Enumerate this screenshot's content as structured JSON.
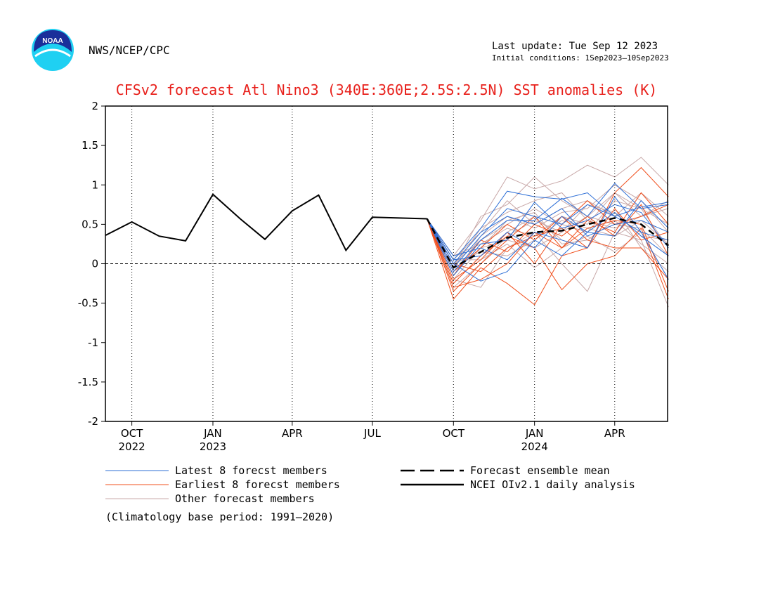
{
  "header": {
    "agency": "NWS/NCEP/CPC",
    "last_update": "Last update: Tue Sep 12 2023",
    "initial_conditions": "Initial conditions: 1Sep2023–10Sep2023",
    "logo_text": "NOAA"
  },
  "colors": {
    "title": "#e8211c",
    "latest": "#2e6fd6",
    "earliest": "#f0501e",
    "other": "#c8a8a8",
    "mean": "#000000",
    "analysis": "#000000"
  },
  "chart_data": {
    "type": "line",
    "title": "CFSv2 forecast Atl Nino3 (340E:360E;2.5S:2.5N) SST anomalies (K)",
    "ylim": [
      -2,
      2
    ],
    "yticks": [
      {
        "v": 2,
        "label": "2"
      },
      {
        "v": 1.5,
        "label": "1.5"
      },
      {
        "v": 1,
        "label": "1"
      },
      {
        "v": 0.5,
        "label": "0.5"
      },
      {
        "v": 0,
        "label": "0"
      },
      {
        "v": -0.5,
        "label": "-0.5"
      },
      {
        "v": -1,
        "label": "-1"
      },
      {
        "v": -1.5,
        "label": "-1.5"
      },
      {
        "v": -2,
        "label": "-2"
      }
    ],
    "xlim": [
      "2022-09-01",
      "2024-05-31"
    ],
    "xticks": [
      {
        "date": "2022-10-01",
        "label": "OCT",
        "year": "2022"
      },
      {
        "date": "2023-01-01",
        "label": "JAN",
        "year": "2023"
      },
      {
        "date": "2023-04-01",
        "label": "APR",
        "year": ""
      },
      {
        "date": "2023-07-01",
        "label": "JUL",
        "year": ""
      },
      {
        "date": "2023-10-01",
        "label": "OCT",
        "year": ""
      },
      {
        "date": "2024-01-01",
        "label": "JAN",
        "year": "2024"
      },
      {
        "date": "2024-04-01",
        "label": "APR",
        "year": ""
      }
    ],
    "zero_line": "dashed",
    "analysis": {
      "name": "NCEI OIv2.1 daily analysis",
      "x": [
        "2022-09-01",
        "2022-10-01",
        "2022-11-01",
        "2022-12-01",
        "2023-01-01",
        "2023-02-01",
        "2023-03-01",
        "2023-04-01",
        "2023-05-01",
        "2023-06-01",
        "2023-07-01",
        "2023-08-01",
        "2023-09-01"
      ],
      "y": [
        0.36,
        0.53,
        0.35,
        0.29,
        0.88,
        0.57,
        0.31,
        0.67,
        0.87,
        0.17,
        0.59,
        0.58,
        0.57
      ]
    },
    "forecast_x": [
      "2023-09-01",
      "2023-10-01",
      "2023-11-01",
      "2023-12-01",
      "2024-01-01",
      "2024-02-01",
      "2024-03-01",
      "2024-04-01",
      "2024-05-01",
      "2024-06-01"
    ],
    "ensemble_mean": {
      "name": "Forecast ensemble mean",
      "y": [
        0.57,
        -0.05,
        0.15,
        0.33,
        0.4,
        0.42,
        0.5,
        0.58,
        0.5,
        0.23
      ]
    },
    "series": [
      {
        "group": "latest",
        "name": "Latest 8 forecst members",
        "members": [
          [
            0.57,
            0.05,
            0.45,
            0.92,
            0.85,
            0.82,
            0.9,
            0.6,
            0.72,
            0.78
          ],
          [
            0.57,
            -0.1,
            0.3,
            0.55,
            0.55,
            0.83,
            0.6,
            1.02,
            0.7,
            0.75
          ],
          [
            0.57,
            0.0,
            -0.22,
            -0.1,
            0.3,
            0.1,
            0.4,
            0.35,
            0.8,
            0.45
          ],
          [
            0.57,
            0.1,
            0.2,
            0.05,
            0.4,
            0.3,
            0.2,
            0.85,
            0.4,
            -0.2
          ],
          [
            0.57,
            -0.05,
            0.35,
            0.7,
            0.6,
            0.5,
            0.75,
            0.6,
            0.4,
            0.3
          ],
          [
            0.57,
            0.05,
            0.1,
            0.4,
            0.2,
            0.6,
            0.4,
            0.65,
            0.35,
            0.1
          ],
          [
            0.57,
            -0.15,
            0.25,
            0.3,
            0.78,
            0.45,
            0.55,
            0.75,
            0.65,
            0.2
          ],
          [
            0.57,
            0.0,
            0.4,
            0.6,
            0.5,
            0.7,
            0.35,
            0.5,
            0.55,
            0.4
          ]
        ]
      },
      {
        "group": "earliest",
        "name": "Earliest 8 forecst members",
        "members": [
          [
            0.57,
            -0.45,
            -0.05,
            -0.25,
            -0.52,
            0.1,
            0.2,
            0.9,
            1.22,
            0.85
          ],
          [
            0.57,
            -0.25,
            0.1,
            0.35,
            0.2,
            -0.33,
            0.0,
            0.1,
            0.45,
            -0.45
          ],
          [
            0.57,
            -0.3,
            -0.2,
            0.0,
            0.4,
            0.2,
            0.55,
            0.4,
            0.9,
            0.5
          ],
          [
            0.57,
            -0.1,
            0.2,
            0.5,
            0.3,
            0.6,
            0.3,
            0.2,
            0.2,
            -0.2
          ],
          [
            0.57,
            -0.2,
            0.05,
            0.4,
            0.0,
            0.5,
            0.8,
            0.5,
            0.6,
            0.75
          ],
          [
            0.57,
            0.0,
            -0.1,
            0.2,
            0.35,
            0.45,
            0.2,
            0.7,
            0.3,
            0.4
          ],
          [
            0.57,
            -0.15,
            0.3,
            0.15,
            0.5,
            0.35,
            0.6,
            0.35,
            0.75,
            0.1
          ],
          [
            0.57,
            -0.35,
            0.0,
            0.3,
            0.6,
            0.2,
            0.45,
            0.55,
            0.5,
            -0.35
          ]
        ]
      },
      {
        "group": "other",
        "name": "Other forecast members",
        "members": [
          [
            0.57,
            0.1,
            0.55,
            1.1,
            0.95,
            1.05,
            1.25,
            1.1,
            1.35,
            1.0
          ],
          [
            0.57,
            -0.05,
            0.6,
            0.75,
            1.1,
            0.8,
            0.6,
            0.9,
            0.6,
            0.8
          ],
          [
            0.57,
            -0.2,
            -0.3,
            0.2,
            0.4,
            0.0,
            -0.35,
            0.4,
            0.3,
            -0.55
          ],
          [
            0.57,
            0.0,
            0.3,
            0.5,
            0.7,
            0.5,
            0.4,
            0.8,
            0.7,
            0.5
          ],
          [
            0.57,
            -0.1,
            0.2,
            0.3,
            0.2,
            0.4,
            0.6,
            0.5,
            0.45,
            0.1
          ],
          [
            0.57,
            0.05,
            0.4,
            0.8,
            0.5,
            0.7,
            0.8,
            0.6,
            0.9,
            0.6
          ],
          [
            0.57,
            -0.25,
            0.1,
            0.4,
            0.6,
            0.3,
            0.2,
            0.7,
            0.2,
            -0.1
          ],
          [
            0.57,
            0.0,
            0.15,
            0.1,
            0.3,
            0.55,
            0.45,
            0.35,
            0.55,
            0.25
          ],
          [
            0.57,
            -0.15,
            0.35,
            0.6,
            0.45,
            0.65,
            0.7,
            1.0,
            0.8,
            0.4
          ],
          [
            0.57,
            0.05,
            0.05,
            0.25,
            -0.05,
            0.2,
            0.35,
            0.15,
            0.4,
            -0.2
          ],
          [
            0.57,
            -0.05,
            0.45,
            0.65,
            0.8,
            0.9,
            0.55,
            0.45,
            0.6,
            0.7
          ],
          [
            0.57,
            -0.3,
            0.0,
            0.35,
            0.55,
            0.4,
            0.75,
            0.65,
            0.35,
            0.3
          ],
          [
            0.57,
            0.1,
            0.25,
            0.45,
            0.35,
            0.6,
            0.5,
            0.9,
            0.7,
            0.2
          ],
          [
            0.57,
            -0.2,
            0.2,
            0.55,
            0.65,
            0.25,
            0.3,
            0.55,
            0.25,
            0.0
          ]
        ]
      }
    ],
    "legend": [
      {
        "key": "latest",
        "label": "Latest 8 forecst members",
        "style": "solid"
      },
      {
        "key": "earliest",
        "label": "Earliest 8 forecst members",
        "style": "solid"
      },
      {
        "key": "other",
        "label": "Other forecast members",
        "style": "solid"
      },
      {
        "key": "mean",
        "label": "Forecast ensemble mean",
        "style": "dashed"
      },
      {
        "key": "analysis",
        "label": "NCEI OIv2.1 daily analysis",
        "style": "solid"
      }
    ],
    "note": "(Climatology base period: 1991–2020)"
  }
}
